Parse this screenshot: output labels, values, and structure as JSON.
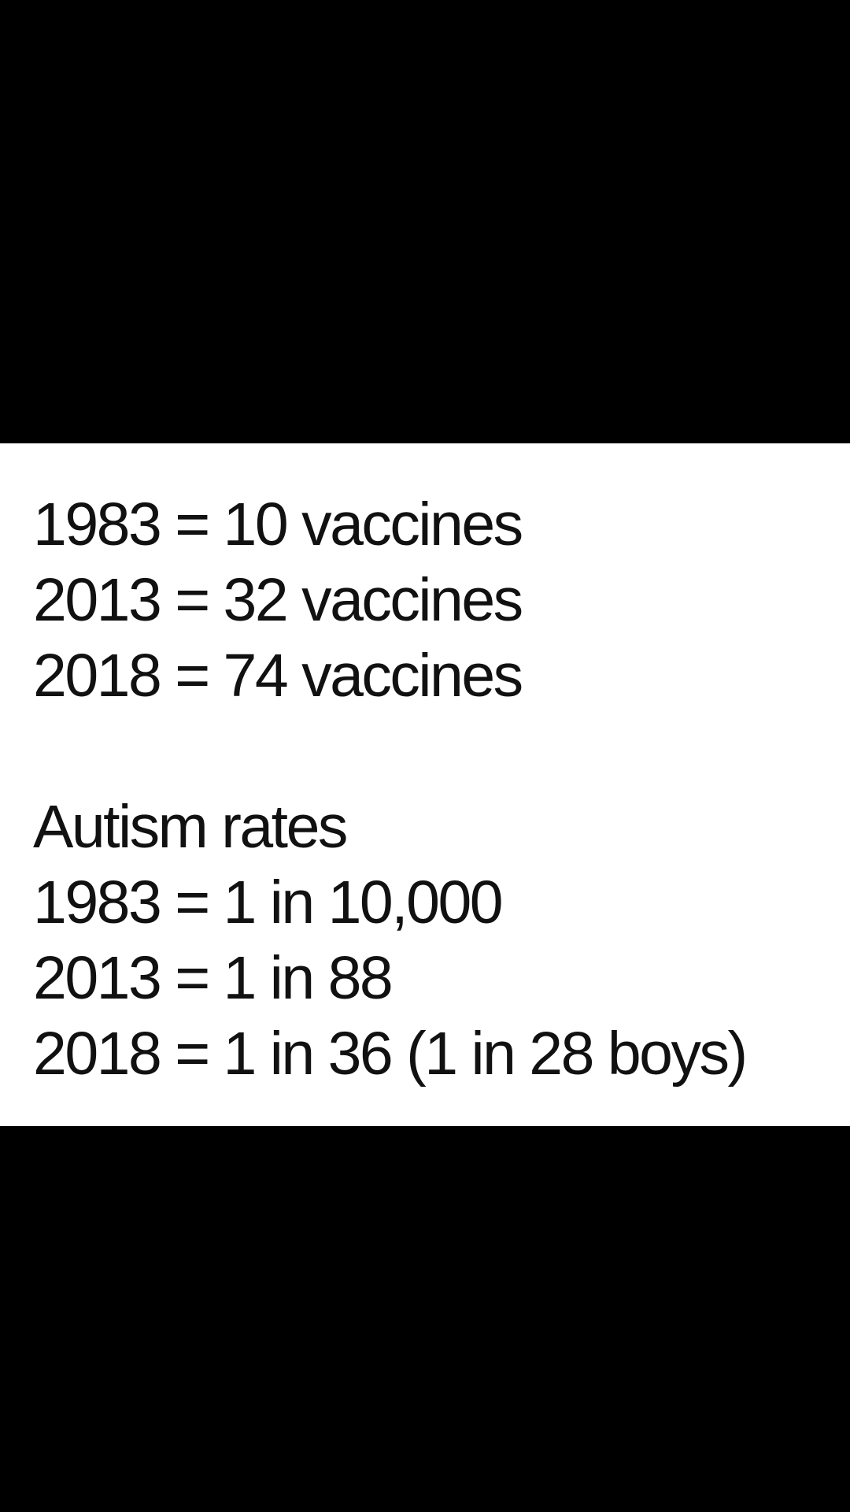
{
  "colors": {
    "background": "#000000",
    "panel": "#ffffff",
    "text": "#111111"
  },
  "vaccines": [
    "1983 = 10 vaccines",
    "2013 = 32 vaccines",
    "2018 = 74 vaccines"
  ],
  "autism": {
    "heading": "Autism rates",
    "lines": [
      "1983 = 1 in 10,000",
      "2013 = 1 in 88",
      "2018 = 1 in 36 (1 in 28 boys)"
    ]
  }
}
